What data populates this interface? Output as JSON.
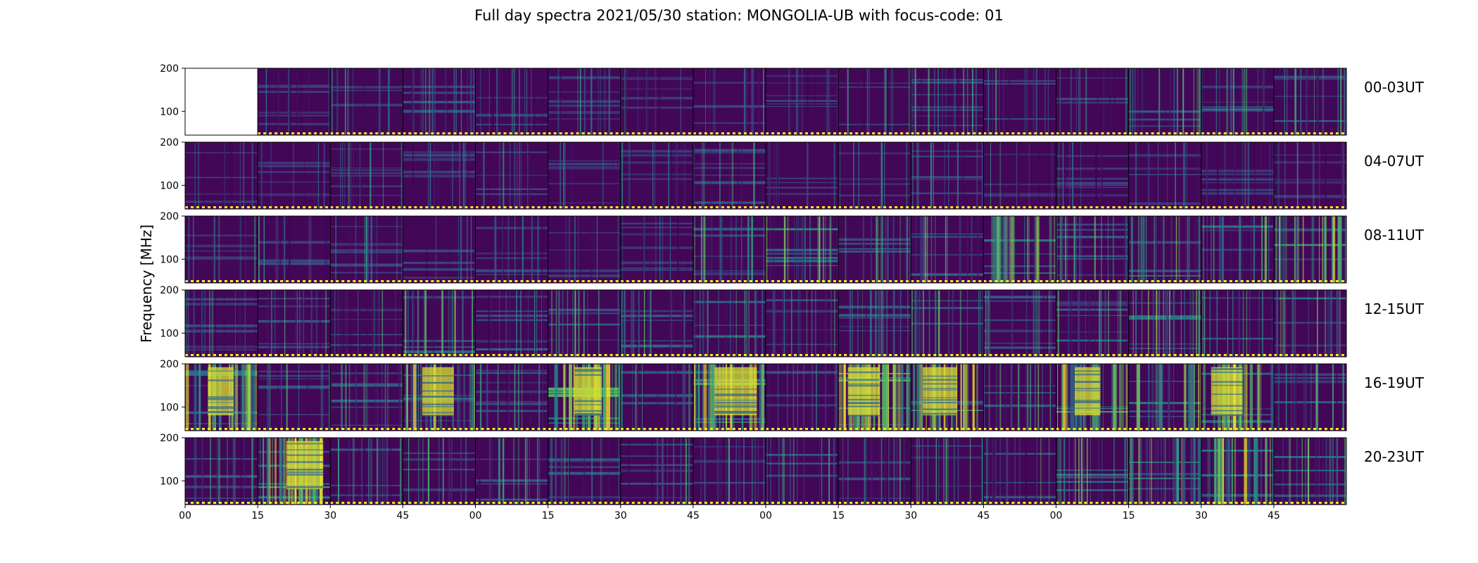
{
  "title": "Full day spectra 2021/05/30 station: MONGOLIA-UB with focus-code: 01",
  "chart_data": {
    "type": "heatmap",
    "title": "Full day spectra 2021/05/30 station: MONGOLIA-UB with focus-code: 01",
    "ylabel": "Frequency [MHz]",
    "xlabel": "",
    "colormap": "viridis",
    "colors": {
      "low": "#440154",
      "mid": "#21918c",
      "high": "#fde725"
    },
    "ylim": [
      45,
      200
    ],
    "y_ticks": [
      100,
      200
    ],
    "x_tick_labels": [
      "00",
      "15",
      "30",
      "45",
      "00",
      "15",
      "30",
      "45",
      "00",
      "15",
      "30",
      "45",
      "00",
      "15",
      "30",
      "45"
    ],
    "rows": [
      {
        "label": "00-03UT",
        "activity": [
          -1,
          0.08,
          0.12,
          0.28,
          0.14,
          0.1,
          0.1,
          0.14,
          0.14,
          0.12,
          0.2,
          0.22,
          0.14,
          0.3,
          0.3,
          0.32
        ]
      },
      {
        "label": "04-07UT",
        "activity": [
          0.08,
          0.1,
          0.12,
          0.12,
          0.14,
          0.08,
          0.08,
          0.2,
          0.1,
          0.1,
          0.16,
          0.1,
          0.1,
          0.1,
          0.1,
          0.1
        ]
      },
      {
        "label": "08-11UT",
        "activity": [
          0.1,
          0.12,
          0.16,
          0.1,
          0.1,
          0.08,
          0.08,
          0.24,
          0.4,
          0.32,
          0.36,
          0.46,
          0.3,
          0.36,
          0.32,
          0.5
        ]
      },
      {
        "label": "12-15UT",
        "activity": [
          0.16,
          0.2,
          0.22,
          0.34,
          0.22,
          0.28,
          0.26,
          0.34,
          0.26,
          0.3,
          0.3,
          0.26,
          0.3,
          0.4,
          0.26,
          0.36
        ]
      },
      {
        "label": "16-19UT",
        "activity": [
          0.6,
          0.18,
          0.3,
          0.52,
          0.24,
          0.68,
          0.3,
          0.66,
          0.18,
          0.76,
          0.74,
          0.32,
          0.62,
          0.46,
          0.6,
          0.32
        ]
      },
      {
        "label": "20-23UT",
        "activity": [
          0.26,
          0.66,
          0.3,
          0.22,
          0.22,
          0.24,
          0.22,
          0.2,
          0.22,
          0.24,
          0.22,
          0.3,
          0.4,
          0.46,
          0.5,
          0.4
        ]
      }
    ]
  }
}
